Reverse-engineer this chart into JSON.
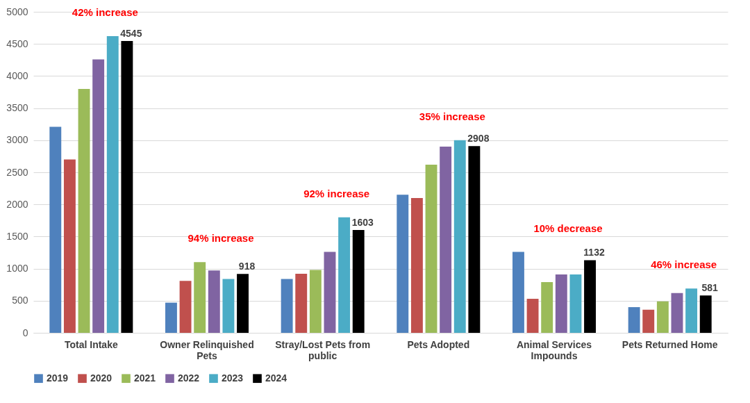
{
  "chart_data": {
    "type": "bar",
    "categories": [
      "Total Intake",
      "Owner Relinquished Pets",
      "Stray/Lost Pets from public",
      "Pets Adopted",
      "Animal Services Impounds",
      "Pets Returned Home"
    ],
    "series": [
      {
        "name": "2019",
        "color": "#4f81bd",
        "values": [
          3210,
          470,
          840,
          2150,
          1260,
          400
        ]
      },
      {
        "name": "2020",
        "color": "#c0504d",
        "values": [
          2700,
          810,
          920,
          2100,
          530,
          360
        ]
      },
      {
        "name": "2021",
        "color": "#9bbb59",
        "values": [
          3800,
          1100,
          980,
          2620,
          790,
          490
        ]
      },
      {
        "name": "2022",
        "color": "#8064a2",
        "values": [
          4260,
          970,
          1260,
          2900,
          910,
          620
        ]
      },
      {
        "name": "2023",
        "color": "#4bacc6",
        "values": [
          4620,
          840,
          1800,
          3000,
          910,
          690
        ]
      },
      {
        "name": "2024",
        "color": "#000000",
        "values": [
          4545,
          918,
          1603,
          2908,
          1132,
          581
        ],
        "value_labels": [
          "4545",
          "918",
          "1603",
          "2908",
          "1132",
          "581"
        ]
      }
    ],
    "annotations": [
      "42% increase",
      "94% increase",
      "92% increase",
      "35% increase",
      "10% decrease",
      "46% increase"
    ],
    "ylim": [
      0,
      5000
    ],
    "yticks": [
      0,
      500,
      1000,
      1500,
      2000,
      2500,
      3000,
      3500,
      4000,
      4500,
      5000
    ],
    "grid": "y",
    "legend": "bottom"
  }
}
